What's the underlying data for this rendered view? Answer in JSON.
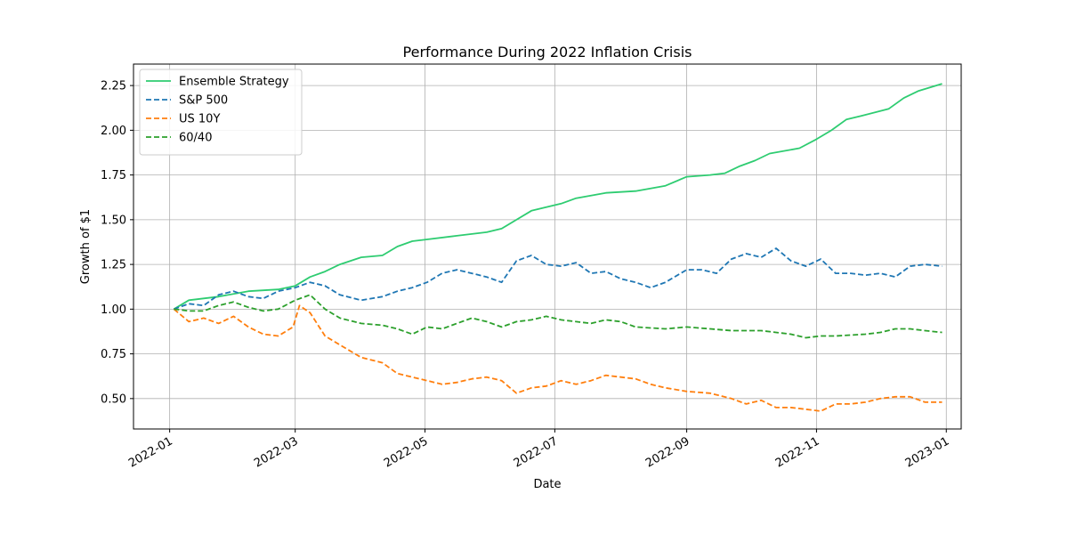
{
  "chart_data": {
    "type": "line",
    "title": "Performance During 2022 Inflation Crisis",
    "xlabel": "Date",
    "ylabel": "Growth of $1",
    "grid": true,
    "legend_position": "top-left",
    "xlim": [
      "2021-12-15",
      "2023-01-08"
    ],
    "ylim": [
      0.33,
      2.37
    ],
    "x_ticks": [
      "2022-01-01",
      "2022-03-01",
      "2022-05-01",
      "2022-07-01",
      "2022-09-01",
      "2022-11-01",
      "2023-01-01"
    ],
    "x_tick_labels": [
      "2022-01",
      "2022-03",
      "2022-05",
      "2022-07",
      "2022-09",
      "2022-11",
      "2023-01"
    ],
    "y_ticks": [
      0.5,
      0.75,
      1.0,
      1.25,
      1.5,
      1.75,
      2.0,
      2.25
    ],
    "y_tick_labels": [
      "0.50",
      "0.75",
      "1.00",
      "1.25",
      "1.50",
      "1.75",
      "2.00",
      "2.25"
    ],
    "series": [
      {
        "name": "Ensemble Strategy",
        "color": "#2ecc71",
        "dash": "solid",
        "points": [
          [
            "2022-01-03",
            1.0
          ],
          [
            "2022-01-10",
            1.05
          ],
          [
            "2022-01-24",
            1.07
          ],
          [
            "2022-02-07",
            1.1
          ],
          [
            "2022-02-21",
            1.11
          ],
          [
            "2022-03-01",
            1.13
          ],
          [
            "2022-03-08",
            1.18
          ],
          [
            "2022-03-15",
            1.21
          ],
          [
            "2022-03-22",
            1.25
          ],
          [
            "2022-04-01",
            1.29
          ],
          [
            "2022-04-11",
            1.3
          ],
          [
            "2022-04-18",
            1.35
          ],
          [
            "2022-04-25",
            1.38
          ],
          [
            "2022-05-02",
            1.39
          ],
          [
            "2022-05-16",
            1.41
          ],
          [
            "2022-05-30",
            1.43
          ],
          [
            "2022-06-06",
            1.45
          ],
          [
            "2022-06-13",
            1.5
          ],
          [
            "2022-06-20",
            1.55
          ],
          [
            "2022-06-27",
            1.57
          ],
          [
            "2022-07-04",
            1.59
          ],
          [
            "2022-07-11",
            1.62
          ],
          [
            "2022-07-25",
            1.65
          ],
          [
            "2022-08-08",
            1.66
          ],
          [
            "2022-08-22",
            1.69
          ],
          [
            "2022-09-01",
            1.74
          ],
          [
            "2022-09-12",
            1.75
          ],
          [
            "2022-09-19",
            1.76
          ],
          [
            "2022-09-26",
            1.8
          ],
          [
            "2022-10-03",
            1.83
          ],
          [
            "2022-10-10",
            1.87
          ],
          [
            "2022-10-24",
            1.9
          ],
          [
            "2022-11-01",
            1.95
          ],
          [
            "2022-11-08",
            2.0
          ],
          [
            "2022-11-15",
            2.06
          ],
          [
            "2022-11-22",
            2.08
          ],
          [
            "2022-12-05",
            2.12
          ],
          [
            "2022-12-12",
            2.18
          ],
          [
            "2022-12-19",
            2.22
          ],
          [
            "2022-12-30",
            2.26
          ]
        ]
      },
      {
        "name": "S&P 500",
        "color": "#1f77b4",
        "dash": "dashed",
        "points": [
          [
            "2022-01-03",
            1.0
          ],
          [
            "2022-01-10",
            1.03
          ],
          [
            "2022-01-17",
            1.02
          ],
          [
            "2022-01-24",
            1.08
          ],
          [
            "2022-01-31",
            1.1
          ],
          [
            "2022-02-07",
            1.07
          ],
          [
            "2022-02-14",
            1.06
          ],
          [
            "2022-02-21",
            1.1
          ],
          [
            "2022-03-01",
            1.12
          ],
          [
            "2022-03-08",
            1.15
          ],
          [
            "2022-03-15",
            1.13
          ],
          [
            "2022-03-22",
            1.08
          ],
          [
            "2022-04-01",
            1.05
          ],
          [
            "2022-04-11",
            1.07
          ],
          [
            "2022-04-18",
            1.1
          ],
          [
            "2022-04-25",
            1.12
          ],
          [
            "2022-05-02",
            1.15
          ],
          [
            "2022-05-09",
            1.2
          ],
          [
            "2022-05-16",
            1.22
          ],
          [
            "2022-05-23",
            1.2
          ],
          [
            "2022-05-30",
            1.18
          ],
          [
            "2022-06-06",
            1.15
          ],
          [
            "2022-06-13",
            1.27
          ],
          [
            "2022-06-20",
            1.3
          ],
          [
            "2022-06-27",
            1.25
          ],
          [
            "2022-07-04",
            1.24
          ],
          [
            "2022-07-11",
            1.26
          ],
          [
            "2022-07-18",
            1.2
          ],
          [
            "2022-07-25",
            1.21
          ],
          [
            "2022-08-01",
            1.17
          ],
          [
            "2022-08-08",
            1.15
          ],
          [
            "2022-08-15",
            1.12
          ],
          [
            "2022-08-22",
            1.15
          ],
          [
            "2022-09-01",
            1.22
          ],
          [
            "2022-09-08",
            1.22
          ],
          [
            "2022-09-15",
            1.2
          ],
          [
            "2022-09-22",
            1.28
          ],
          [
            "2022-09-29",
            1.31
          ],
          [
            "2022-10-06",
            1.29
          ],
          [
            "2022-10-13",
            1.34
          ],
          [
            "2022-10-20",
            1.27
          ],
          [
            "2022-10-27",
            1.24
          ],
          [
            "2022-11-03",
            1.28
          ],
          [
            "2022-11-10",
            1.2
          ],
          [
            "2022-11-17",
            1.2
          ],
          [
            "2022-11-24",
            1.19
          ],
          [
            "2022-12-01",
            1.2
          ],
          [
            "2022-12-08",
            1.18
          ],
          [
            "2022-12-15",
            1.24
          ],
          [
            "2022-12-22",
            1.25
          ],
          [
            "2022-12-30",
            1.24
          ]
        ]
      },
      {
        "name": "US 10Y",
        "color": "#ff7f0e",
        "dash": "dashed",
        "points": [
          [
            "2022-01-03",
            1.0
          ],
          [
            "2022-01-10",
            0.93
          ],
          [
            "2022-01-17",
            0.95
          ],
          [
            "2022-01-24",
            0.92
          ],
          [
            "2022-01-31",
            0.96
          ],
          [
            "2022-02-07",
            0.9
          ],
          [
            "2022-02-14",
            0.86
          ],
          [
            "2022-02-21",
            0.85
          ],
          [
            "2022-02-28",
            0.9
          ],
          [
            "2022-03-03",
            1.02
          ],
          [
            "2022-03-08",
            0.98
          ],
          [
            "2022-03-15",
            0.85
          ],
          [
            "2022-03-22",
            0.8
          ],
          [
            "2022-04-01",
            0.73
          ],
          [
            "2022-04-11",
            0.7
          ],
          [
            "2022-04-18",
            0.64
          ],
          [
            "2022-04-25",
            0.62
          ],
          [
            "2022-05-02",
            0.6
          ],
          [
            "2022-05-09",
            0.58
          ],
          [
            "2022-05-16",
            0.59
          ],
          [
            "2022-05-23",
            0.61
          ],
          [
            "2022-05-30",
            0.62
          ],
          [
            "2022-06-06",
            0.6
          ],
          [
            "2022-06-13",
            0.53
          ],
          [
            "2022-06-20",
            0.56
          ],
          [
            "2022-06-27",
            0.57
          ],
          [
            "2022-07-04",
            0.6
          ],
          [
            "2022-07-11",
            0.58
          ],
          [
            "2022-07-18",
            0.6
          ],
          [
            "2022-07-25",
            0.63
          ],
          [
            "2022-08-01",
            0.62
          ],
          [
            "2022-08-08",
            0.61
          ],
          [
            "2022-08-15",
            0.58
          ],
          [
            "2022-08-22",
            0.56
          ],
          [
            "2022-09-01",
            0.54
          ],
          [
            "2022-09-12",
            0.53
          ],
          [
            "2022-09-22",
            0.5
          ],
          [
            "2022-09-29",
            0.47
          ],
          [
            "2022-10-06",
            0.49
          ],
          [
            "2022-10-13",
            0.45
          ],
          [
            "2022-10-20",
            0.45
          ],
          [
            "2022-10-27",
            0.44
          ],
          [
            "2022-11-03",
            0.43
          ],
          [
            "2022-11-10",
            0.47
          ],
          [
            "2022-11-17",
            0.47
          ],
          [
            "2022-11-24",
            0.48
          ],
          [
            "2022-12-01",
            0.5
          ],
          [
            "2022-12-08",
            0.51
          ],
          [
            "2022-12-15",
            0.51
          ],
          [
            "2022-12-22",
            0.48
          ],
          [
            "2022-12-30",
            0.48
          ]
        ]
      },
      {
        "name": "60/40",
        "color": "#2ca02c",
        "dash": "dashed",
        "points": [
          [
            "2022-01-03",
            1.0
          ],
          [
            "2022-01-10",
            0.99
          ],
          [
            "2022-01-17",
            0.99
          ],
          [
            "2022-01-24",
            1.02
          ],
          [
            "2022-01-31",
            1.04
          ],
          [
            "2022-02-07",
            1.01
          ],
          [
            "2022-02-14",
            0.99
          ],
          [
            "2022-02-21",
            1.0
          ],
          [
            "2022-03-01",
            1.05
          ],
          [
            "2022-03-08",
            1.08
          ],
          [
            "2022-03-15",
            1.0
          ],
          [
            "2022-03-22",
            0.95
          ],
          [
            "2022-04-01",
            0.92
          ],
          [
            "2022-04-11",
            0.91
          ],
          [
            "2022-04-18",
            0.89
          ],
          [
            "2022-04-25",
            0.86
          ],
          [
            "2022-05-02",
            0.9
          ],
          [
            "2022-05-09",
            0.89
          ],
          [
            "2022-05-16",
            0.92
          ],
          [
            "2022-05-23",
            0.95
          ],
          [
            "2022-05-30",
            0.93
          ],
          [
            "2022-06-06",
            0.9
          ],
          [
            "2022-06-13",
            0.93
          ],
          [
            "2022-06-20",
            0.94
          ],
          [
            "2022-06-27",
            0.96
          ],
          [
            "2022-07-04",
            0.94
          ],
          [
            "2022-07-11",
            0.93
          ],
          [
            "2022-07-18",
            0.92
          ],
          [
            "2022-07-25",
            0.94
          ],
          [
            "2022-08-01",
            0.93
          ],
          [
            "2022-08-08",
            0.9
          ],
          [
            "2022-08-22",
            0.89
          ],
          [
            "2022-09-01",
            0.9
          ],
          [
            "2022-09-12",
            0.89
          ],
          [
            "2022-09-22",
            0.88
          ],
          [
            "2022-10-06",
            0.88
          ],
          [
            "2022-10-20",
            0.86
          ],
          [
            "2022-10-27",
            0.84
          ],
          [
            "2022-11-03",
            0.85
          ],
          [
            "2022-11-10",
            0.85
          ],
          [
            "2022-11-24",
            0.86
          ],
          [
            "2022-12-01",
            0.87
          ],
          [
            "2022-12-08",
            0.89
          ],
          [
            "2022-12-15",
            0.89
          ],
          [
            "2022-12-22",
            0.88
          ],
          [
            "2022-12-30",
            0.87
          ]
        ]
      }
    ]
  }
}
